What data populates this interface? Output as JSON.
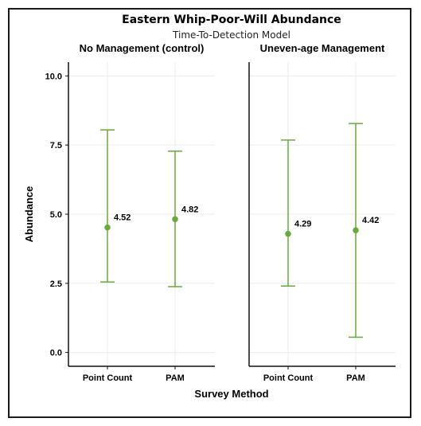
{
  "chart_data": {
    "type": "errorbar",
    "title": "Eastern Whip-Poor-Will Abundance",
    "subtitle": "Time-To-Detection Model",
    "xlabel": "Survey Method",
    "ylabel": "Abundance",
    "ylim": [
      -0.5,
      10.5
    ],
    "yticks": [
      "0.0",
      "2.5",
      "5.0",
      "7.5",
      "10.0"
    ],
    "ytick_values": [
      0,
      2.5,
      5,
      7.5,
      10
    ],
    "categories": [
      "Point Count",
      "PAM"
    ],
    "color": "#6aaa3a",
    "grid": true,
    "facets": [
      {
        "label": "No Management (control)",
        "points": [
          {
            "category": "Point Count",
            "estimate": 4.52,
            "lower": 2.55,
            "upper": 8.05,
            "label": "4.52"
          },
          {
            "category": "PAM",
            "estimate": 4.82,
            "lower": 2.38,
            "upper": 7.28,
            "label": "4.82"
          }
        ]
      },
      {
        "label": "Uneven-age Management",
        "points": [
          {
            "category": "Point Count",
            "estimate": 4.29,
            "lower": 2.4,
            "upper": 7.68,
            "label": "4.29"
          },
          {
            "category": "PAM",
            "estimate": 4.42,
            "lower": 0.55,
            "upper": 8.28,
            "label": "4.42"
          }
        ]
      }
    ]
  }
}
